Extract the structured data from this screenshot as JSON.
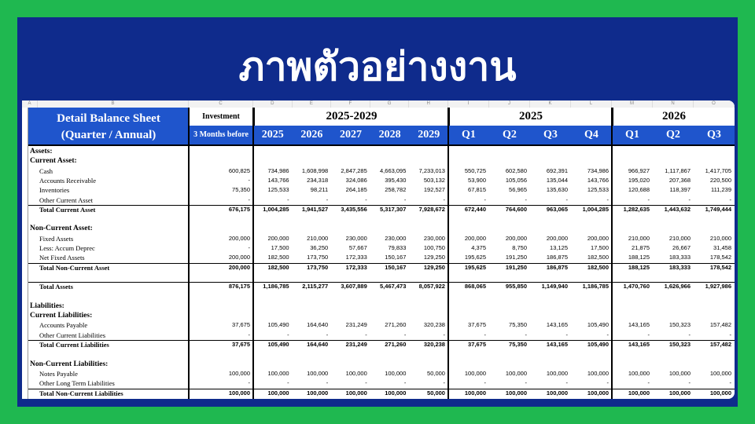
{
  "title": "ภาพตัวอย่างงาน",
  "sheet": {
    "column_letters": [
      "A",
      "B",
      "C",
      "D",
      "E",
      "F",
      "G",
      "H",
      "I",
      "J",
      "K",
      "L",
      "M",
      "N",
      "O"
    ],
    "header": {
      "title": [
        "Detail Balance Sheet",
        "(Quarter  / Annual)"
      ],
      "investment": "Investment",
      "investment_sub": "3 Months before",
      "groups": [
        {
          "label": "2025-2029",
          "columns": [
            "2025",
            "2026",
            "2027",
            "2028",
            "2029"
          ]
        },
        {
          "label": "2025",
          "columns": [
            "Q1",
            "Q2",
            "Q3",
            "Q4"
          ]
        },
        {
          "label": "2026",
          "columns": [
            "Q1",
            "Q2",
            "Q3"
          ]
        }
      ]
    },
    "rows": [
      {
        "label": "Assets:"
      },
      {
        "label": "Current Asset:"
      },
      {
        "label": "Cash",
        "cells": [
          "600,825",
          "734,986",
          "1,608,998",
          "2,847,285",
          "4,663,095",
          "7,233,013",
          "550,725",
          "602,580",
          "692,391",
          "734,986",
          "966,927",
          "1,117,867",
          "1,417,705"
        ]
      },
      {
        "label": "Accounts Receivable",
        "cells": [
          "-",
          "143,766",
          "234,318",
          "324,086",
          "395,430",
          "503,132",
          "53,900",
          "105,056",
          "135,044",
          "143,766",
          "195,020",
          "207,368",
          "220,500"
        ]
      },
      {
        "label": "Inventories",
        "cells": [
          "75,350",
          "125,533",
          "98,211",
          "264,185",
          "258,782",
          "192,527",
          "67,815",
          "56,965",
          "135,630",
          "125,533",
          "120,688",
          "118,397",
          "111,239"
        ]
      },
      {
        "label": "Other Current Asset",
        "cells": [
          "-",
          "-",
          "-",
          "-",
          "-",
          "-",
          "-",
          "-",
          "-",
          "-",
          "-",
          "-",
          "-"
        ]
      },
      {
        "label": "Total Current Asset",
        "cells": [
          "676,175",
          "1,004,285",
          "1,941,527",
          "3,435,556",
          "5,317,307",
          "7,928,672",
          "672,440",
          "764,600",
          "963,065",
          "1,004,285",
          "1,282,635",
          "1,443,632",
          "1,749,444"
        ]
      },
      {
        "label": "Non-Current Asset:"
      },
      {
        "label": "Fixed Assets",
        "cells": [
          "200,000",
          "200,000",
          "210,000",
          "230,000",
          "230,000",
          "230,000",
          "200,000",
          "200,000",
          "200,000",
          "200,000",
          "210,000",
          "210,000",
          "210,000"
        ]
      },
      {
        "label": "Less: Accum Deprec",
        "cells": [
          "-",
          "17,500",
          "36,250",
          "57,667",
          "79,833",
          "100,750",
          "4,375",
          "8,750",
          "13,125",
          "17,500",
          "21,875",
          "26,667",
          "31,458"
        ]
      },
      {
        "label": "Net Fixed Assets",
        "cells": [
          "200,000",
          "182,500",
          "173,750",
          "172,333",
          "150,167",
          "129,250",
          "195,625",
          "191,250",
          "186,875",
          "182,500",
          "188,125",
          "183,333",
          "178,542"
        ]
      },
      {
        "label": "Total Non-Current Asset",
        "cells": [
          "200,000",
          "182,500",
          "173,750",
          "172,333",
          "150,167",
          "129,250",
          "195,625",
          "191,250",
          "186,875",
          "182,500",
          "188,125",
          "183,333",
          "178,542"
        ]
      },
      {
        "label": "Total Assets",
        "cells": [
          "876,175",
          "1,186,785",
          "2,115,277",
          "3,607,889",
          "5,467,473",
          "8,057,922",
          "868,065",
          "955,850",
          "1,149,940",
          "1,186,785",
          "1,470,760",
          "1,626,966",
          "1,927,986"
        ]
      },
      {
        "label": "Liabilities:"
      },
      {
        "label": "Current Liabilities:"
      },
      {
        "label": "Accounts Payable",
        "cells": [
          "37,675",
          "105,490",
          "164,640",
          "231,249",
          "271,260",
          "320,238",
          "37,675",
          "75,350",
          "143,165",
          "105,490",
          "143,165",
          "150,323",
          "157,482"
        ]
      },
      {
        "label": "Other Current Liabilities",
        "cells": [
          "-",
          "-",
          "-",
          "-",
          "-",
          "-",
          "-",
          "-",
          "-",
          "-",
          "-",
          "-",
          "-"
        ]
      },
      {
        "label": "Total Current Liabilities",
        "cells": [
          "37,675",
          "105,490",
          "164,640",
          "231,249",
          "271,260",
          "320,238",
          "37,675",
          "75,350",
          "143,165",
          "105,490",
          "143,165",
          "150,323",
          "157,482"
        ]
      },
      {
        "label": "Non-Current Liabilities:"
      },
      {
        "label": "Notes Payable",
        "cells": [
          "100,000",
          "100,000",
          "100,000",
          "100,000",
          "100,000",
          "50,000",
          "100,000",
          "100,000",
          "100,000",
          "100,000",
          "100,000",
          "100,000",
          "100,000"
        ]
      },
      {
        "label": "Other Long Term Liabilities",
        "cells": [
          "-",
          "-",
          "-",
          "-",
          "-",
          "-",
          "-",
          "-",
          "-",
          "-",
          "-",
          "-",
          "-"
        ]
      },
      {
        "label": "Total Non-Current Liabilities",
        "cells": [
          "100,000",
          "100,000",
          "100,000",
          "100,000",
          "100,000",
          "50,000",
          "100,000",
          "100,000",
          "100,000",
          "100,000",
          "100,000",
          "100,000",
          "100,000"
        ]
      }
    ]
  }
}
